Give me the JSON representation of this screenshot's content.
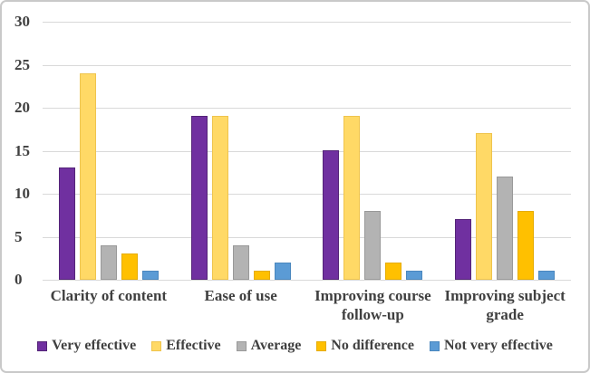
{
  "chart_data": {
    "type": "bar",
    "title": "",
    "xlabel": "",
    "ylabel": "",
    "categories": [
      "Clarity of content",
      "Ease of use",
      "Improving course follow-up",
      "Improving subject grade"
    ],
    "series": [
      {
        "name": "Very effective",
        "color": "#7030A0",
        "border_color": "#542478",
        "values": [
          13,
          19,
          15,
          7
        ]
      },
      {
        "name": "Effective",
        "color": "#FFD966",
        "border_color": "#EFC44D",
        "values": [
          24,
          19,
          19,
          17
        ]
      },
      {
        "name": "Average",
        "color": "#B3B3B3",
        "border_color": "#999999",
        "values": [
          4,
          4,
          8,
          12
        ]
      },
      {
        "name": "No difference",
        "color": "#FFC000",
        "border_color": "#E6AC00",
        "values": [
          3,
          1,
          2,
          8
        ]
      },
      {
        "name": "Not very effective",
        "color": "#5B9BD5",
        "border_color": "#4A87BE",
        "values": [
          1,
          2,
          1,
          1
        ]
      }
    ],
    "ylim": [
      0,
      30
    ],
    "yticks": [
      0,
      5,
      10,
      15,
      20,
      25,
      30
    ],
    "grid": true,
    "legend_position": "bottom",
    "gridline_color": "#D9D9D9",
    "text_color": "#404040",
    "frame_border_color": "#C9C9C9",
    "background_color": "#FFFFFF"
  }
}
